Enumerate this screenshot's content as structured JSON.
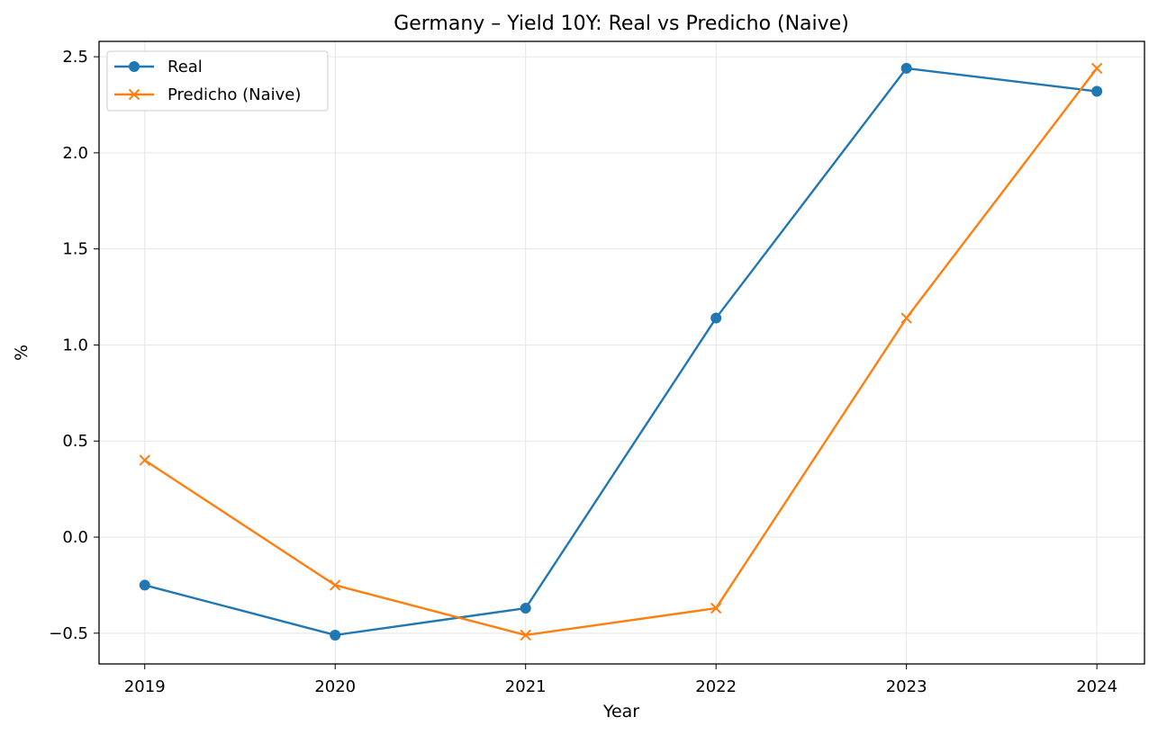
{
  "chart_data": {
    "type": "line",
    "title": "Germany – Yield 10Y: Real vs Predicho (Naive)",
    "xlabel": "Year",
    "ylabel": "%",
    "x": [
      "2019",
      "2020",
      "2021",
      "2022",
      "2023",
      "2024"
    ],
    "xlim": [
      2018.76,
      2024.25
    ],
    "ylim": [
      -0.66,
      2.58
    ],
    "yticks": [
      "−0.5",
      "0.0",
      "0.5",
      "1.0",
      "1.5",
      "2.0",
      "2.5"
    ],
    "grid": true,
    "legend_position": "top-left",
    "series": [
      {
        "name": "Real",
        "color": "#1f77b4",
        "marker": "circle",
        "values": [
          -0.25,
          -0.51,
          -0.37,
          1.14,
          2.44,
          2.32
        ]
      },
      {
        "name": "Predicho (Naive)",
        "color": "#ff7f0e",
        "marker": "x",
        "values": [
          0.4,
          -0.25,
          -0.51,
          -0.37,
          1.14,
          2.44
        ]
      }
    ]
  }
}
